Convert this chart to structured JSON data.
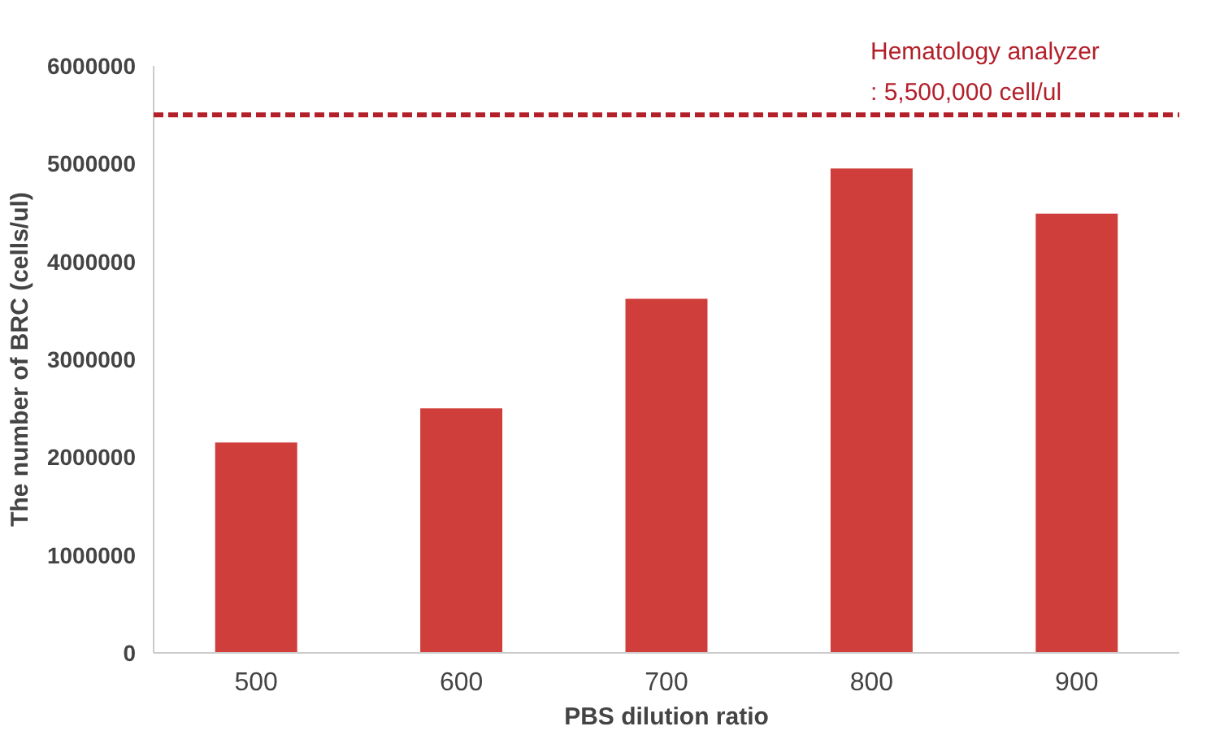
{
  "chart_data": {
    "type": "bar",
    "categories": [
      "500",
      "600",
      "700",
      "800",
      "900"
    ],
    "values": [
      2150000,
      2500000,
      3620000,
      4950000,
      4490000
    ],
    "color": "#cf3e3a",
    "xlabel": "PBS dilution ratio",
    "ylabel": "The number of BRC (cells/ul)",
    "ylim": [
      0,
      6000000
    ],
    "yticks": [
      0,
      1000000,
      2000000,
      3000000,
      4000000,
      5000000,
      6000000
    ],
    "grid": false,
    "ref_lines": [
      {
        "axis": "y",
        "value": 5500000,
        "label": "Hematology analyzer\n: 5,500,000 cell/ul",
        "color": "#b3202a",
        "line_style": "dashed"
      }
    ]
  }
}
